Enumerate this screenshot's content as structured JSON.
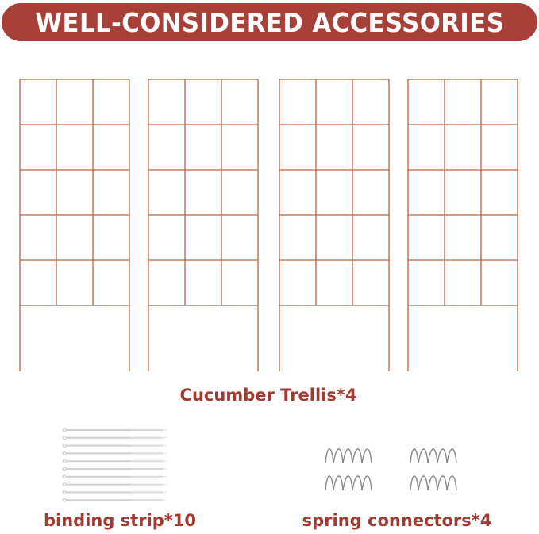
{
  "header": {
    "title": "WELL-CONSIDERED ACCESSORIES"
  },
  "items": {
    "trellis": {
      "label": "Cucumber Trellis*4",
      "count": 4
    },
    "binding_strip": {
      "label": "binding strip*10",
      "count": 10
    },
    "spring_connectors": {
      "label": "spring connectors*4",
      "count": 4
    }
  },
  "colors": {
    "brand": "#a8403a",
    "text": "#a33a30",
    "trellis": "#c0603f",
    "tie": "#cfcfcf",
    "spring": "#8a8a8a"
  }
}
